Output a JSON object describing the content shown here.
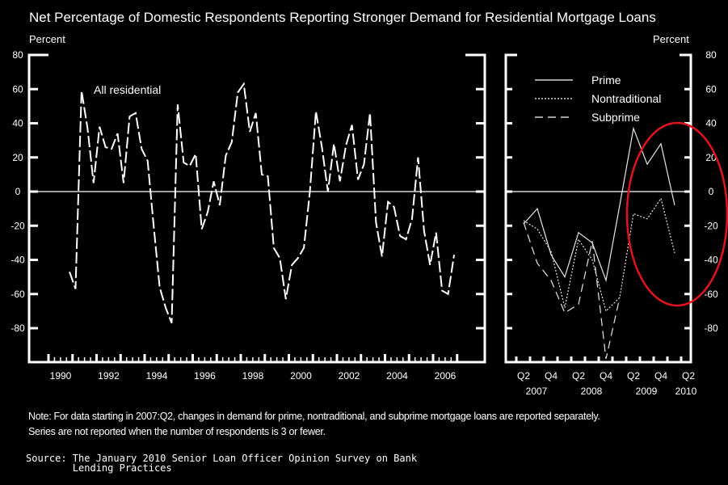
{
  "chart_data": [
    {
      "type": "line",
      "title": "Net Percentage of Domestic Respondents Reporting Stronger Demand for Residential Mortgage Loans",
      "ylabel": "Percent",
      "ylim": [
        -100,
        80
      ],
      "yticks": [
        80,
        60,
        40,
        20,
        0,
        -20,
        -40,
        -60,
        -80
      ],
      "xlim": [
        1989.5,
        2008.2
      ],
      "xtick_labels": [
        "1990",
        "1992",
        "1994",
        "1996",
        "1998",
        "2000",
        "2002",
        "2004",
        "2006"
      ],
      "x_start": "1990:Q4",
      "frequency": "quarterly",
      "annotation": "All residential",
      "series": [
        {
          "name": "All residential",
          "style": "dashed",
          "values": [
            -47,
            -57,
            59,
            37,
            5,
            38,
            26,
            25,
            34,
            5,
            44,
            46,
            25,
            18,
            -20,
            -56,
            -68,
            -77,
            51,
            17,
            15,
            22,
            -22,
            -12,
            6,
            -8,
            21,
            29,
            58,
            63,
            35,
            46,
            10,
            9,
            -33,
            -39,
            -63,
            -43,
            -39,
            -33,
            0,
            47,
            26,
            0,
            28,
            6,
            27,
            39,
            7,
            16,
            46,
            -18,
            -38,
            -6,
            -9,
            -26,
            -28,
            -16,
            20,
            -23,
            -43,
            -24,
            -58,
            -60,
            -37
          ]
        }
      ]
    },
    {
      "type": "line",
      "ylabel": "Percent",
      "ylim": [
        -100,
        80
      ],
      "yticks": [
        80,
        60,
        40,
        20,
        0,
        -20,
        -40,
        -60,
        -80
      ],
      "categories": [
        "2007:Q2",
        "2007:Q3",
        "2007:Q4",
        "2008:Q1",
        "2008:Q2",
        "2008:Q3",
        "2008:Q4",
        "2009:Q1",
        "2009:Q2",
        "2009:Q3",
        "2009:Q4",
        "2010:Q1"
      ],
      "xtick_labels": [
        "Q2",
        "Q4",
        "Q2",
        "Q4",
        "Q2",
        "Q4",
        "Q2"
      ],
      "year_labels": [
        "2007",
        "2008",
        "2009",
        "2010"
      ],
      "legend": "top-left",
      "series": [
        {
          "name": "Prime",
          "style": "solid",
          "values": [
            -19,
            -10,
            -37,
            -50,
            -24,
            -30,
            -52,
            -8,
            37,
            16,
            28,
            -8
          ]
        },
        {
          "name": "Nontraditional",
          "style": "dotted",
          "values": [
            -17,
            -22,
            -35,
            -68,
            -28,
            -40,
            -70,
            -62,
            -13,
            -16,
            -4,
            -36
          ]
        },
        {
          "name": "Subprime",
          "style": "dashed",
          "values": [
            -18,
            -42,
            -52,
            -71,
            -66,
            -29,
            -98,
            -62,
            null,
            null,
            null,
            null
          ]
        }
      ]
    }
  ],
  "header": {
    "title": "Net Percentage of Domestic Respondents Reporting Stronger Demand for Residential Mortgage Loans",
    "unit_left": "Percent",
    "unit_right": "Percent"
  },
  "note": {
    "line1": "Note: For data starting in 2007:Q2, changes in demand for prime, nontraditional, and subprime mortgage loans are reported separately.",
    "line2": "Series are not reported when the number of respondents is 3 or fewer."
  },
  "source": {
    "line1": "Source: The January 2010 Senior Loan Officer Opinion Survey on Bank",
    "line2": "        Lending Practices"
  },
  "colors": {
    "background": "#000000",
    "foreground": "#ffffff",
    "highlight": "#e0141e"
  }
}
